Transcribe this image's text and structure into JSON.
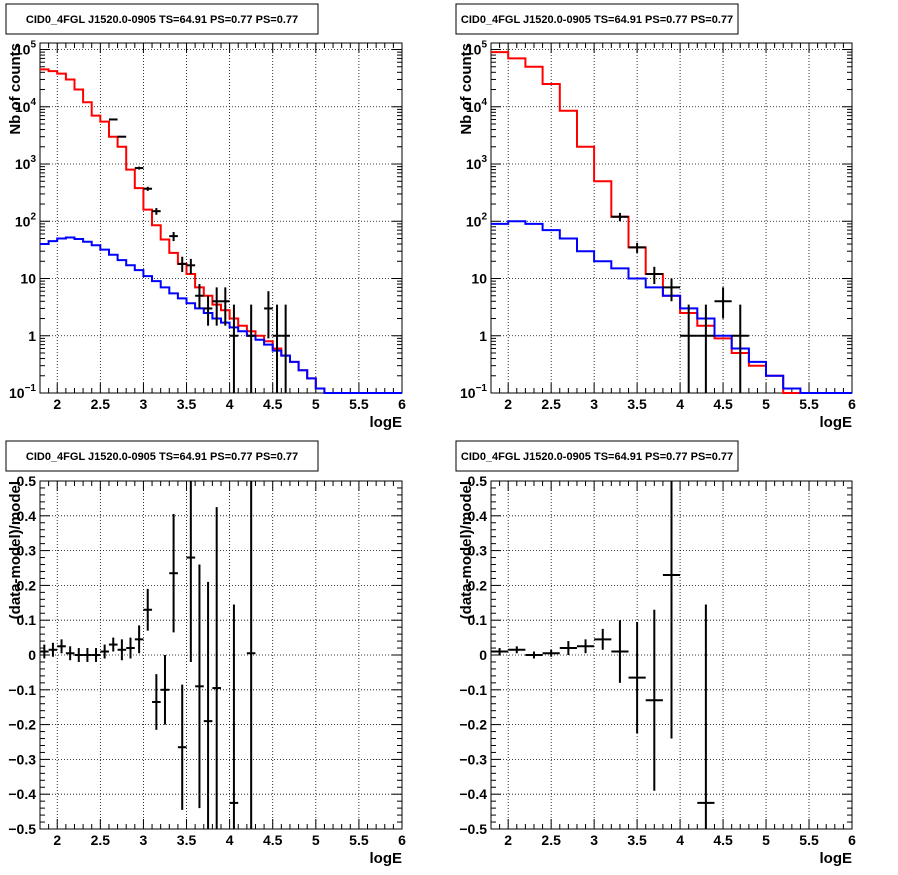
{
  "chart_data": [
    {
      "type": "line",
      "panel": "top-left",
      "title": "CID0_4FGL J1520.0-0905 TS=64.91 PS=0.77 PS=0.77",
      "xlabel": "logE",
      "ylabel": "Nb of counts",
      "xlim": [
        1.8,
        6.0
      ],
      "ylim": [
        0.1,
        130000
      ],
      "ylog": true,
      "grid": true,
      "x_ticks": [
        "2",
        "2.5",
        "3",
        "3.5",
        "4",
        "4.5",
        "5",
        "5.5",
        "6"
      ],
      "y_ticks": [
        {
          "value": 0.1,
          "base": "10",
          "exp": "−1"
        },
        {
          "value": 1,
          "base": "1",
          "exp": ""
        },
        {
          "value": 10,
          "base": "10",
          "exp": ""
        },
        {
          "value": 100,
          "base": "10",
          "exp": "2"
        },
        {
          "value": 1000,
          "base": "10",
          "exp": "3"
        },
        {
          "value": 10000,
          "base": "10",
          "exp": "4"
        },
        {
          "value": 100000,
          "base": "10",
          "exp": "5"
        }
      ],
      "series": [
        {
          "color": "#ff0000",
          "style": "step",
          "bin_width": 0.1,
          "x": [
            1.85,
            1.95,
            2.05,
            2.15,
            2.25,
            2.35,
            2.45,
            2.55,
            2.65,
            2.75,
            2.85,
            2.95,
            3.05,
            3.15,
            3.25,
            3.35,
            3.45,
            3.55,
            3.65,
            3.75,
            3.85,
            3.95,
            4.05,
            4.15,
            4.25,
            4.35,
            4.45,
            4.55,
            4.65,
            4.75,
            4.85,
            4.95,
            5.05,
            5.15,
            5.25,
            5.35,
            5.45,
            5.55,
            5.65,
            5.75,
            5.85,
            5.95
          ],
          "y": [
            45000,
            42000,
            38000,
            30000,
            20000,
            12000,
            7000,
            5500,
            3000,
            2000,
            800,
            380,
            160,
            85,
            48,
            28,
            18,
            12,
            7,
            5,
            3.5,
            2.8,
            2.0,
            1.5,
            1.2,
            1.0,
            0.8,
            0.6,
            0.45,
            0.35,
            0.25,
            0.18,
            0.12,
            0.1,
            0.1,
            0.1,
            0.1,
            0.1,
            0.1,
            0.1,
            0.1,
            0.1
          ]
        },
        {
          "color": "#0000ff",
          "style": "step",
          "bin_width": 0.1,
          "x": [
            1.85,
            1.95,
            2.05,
            2.15,
            2.25,
            2.35,
            2.45,
            2.55,
            2.65,
            2.75,
            2.85,
            2.95,
            3.05,
            3.15,
            3.25,
            3.35,
            3.45,
            3.55,
            3.65,
            3.75,
            3.85,
            3.95,
            4.05,
            4.15,
            4.25,
            4.35,
            4.45,
            4.55,
            4.65,
            4.75,
            4.85,
            4.95,
            5.05,
            5.15,
            5.25,
            5.35,
            5.45,
            5.55,
            5.65,
            5.75,
            5.85,
            5.95
          ],
          "y": [
            40,
            45,
            50,
            52,
            49,
            44,
            38,
            32,
            26,
            21,
            17,
            14,
            11,
            9,
            7,
            5.5,
            4.5,
            3.7,
            3.0,
            2.5,
            2.0,
            1.7,
            1.4,
            1.2,
            1.0,
            0.85,
            0.7,
            0.55,
            0.45,
            0.35,
            0.25,
            0.18,
            0.12,
            0.1,
            0.1,
            0.1,
            0.1,
            0.1,
            0.1,
            0.1,
            0.1,
            0.1
          ]
        },
        {
          "color": "#000000",
          "style": "errorbar",
          "x": [
            2.65,
            2.75,
            2.95,
            3.05,
            3.15,
            3.35,
            3.45,
            3.55,
            3.65,
            3.75,
            3.85,
            3.95,
            4.05,
            4.25,
            4.45,
            4.55,
            4.65
          ],
          "y": [
            6000,
            3000,
            850,
            370,
            150,
            55,
            18,
            17,
            5,
            3,
            4,
            4,
            1,
            1,
            3,
            1,
            1
          ],
          "ylow": [
            5900,
            2900,
            800,
            340,
            130,
            45,
            13,
            12,
            3,
            1.5,
            1.5,
            1.5,
            0.1,
            0.1,
            0.9,
            0.1,
            0.1
          ],
          "yhigh": [
            6100,
            3100,
            900,
            400,
            170,
            65,
            24,
            22,
            8,
            5,
            7,
            7,
            3.5,
            3.5,
            6,
            3.5,
            3.5
          ],
          "xerr": 0.05
        }
      ]
    },
    {
      "type": "line",
      "panel": "top-right",
      "title": "CID0_4FGL J1520.0-0905 TS=64.91 PS=0.77 PS=0.77",
      "xlabel": "logE",
      "ylabel": "Nb of counts",
      "xlim": [
        1.8,
        6.0
      ],
      "ylim": [
        0.1,
        130000
      ],
      "ylog": true,
      "grid": true,
      "x_ticks": [
        "2",
        "2.5",
        "3",
        "3.5",
        "4",
        "4.5",
        "5",
        "5.5",
        "6"
      ],
      "y_ticks": [
        {
          "value": 0.1,
          "base": "10",
          "exp": "−1"
        },
        {
          "value": 1,
          "base": "1",
          "exp": ""
        },
        {
          "value": 10,
          "base": "10",
          "exp": ""
        },
        {
          "value": 100,
          "base": "10",
          "exp": "2"
        },
        {
          "value": 1000,
          "base": "10",
          "exp": "3"
        },
        {
          "value": 10000,
          "base": "10",
          "exp": "4"
        },
        {
          "value": 100000,
          "base": "10",
          "exp": "5"
        }
      ],
      "series": [
        {
          "color": "#ff0000",
          "style": "step",
          "bin_width": 0.2,
          "x": [
            1.9,
            2.1,
            2.3,
            2.5,
            2.7,
            2.9,
            3.1,
            3.3,
            3.5,
            3.7,
            3.9,
            4.1,
            4.3,
            4.5,
            4.7,
            4.9,
            5.1,
            5.3,
            5.5,
            5.7,
            5.9
          ],
          "y": [
            90000,
            70000,
            50000,
            25000,
            8500,
            2000,
            500,
            120,
            35,
            12,
            5,
            2.5,
            1.5,
            0.9,
            0.5,
            0.3,
            0.2,
            0.1,
            0.1,
            0.1,
            0.1
          ]
        },
        {
          "color": "#0000ff",
          "style": "step",
          "bin_width": 0.2,
          "x": [
            1.9,
            2.1,
            2.3,
            2.5,
            2.7,
            2.9,
            3.1,
            3.3,
            3.5,
            3.7,
            3.9,
            4.1,
            4.3,
            4.5,
            4.7,
            4.9,
            5.1,
            5.3,
            5.5,
            5.7,
            5.9
          ],
          "y": [
            90,
            100,
            90,
            70,
            50,
            30,
            20,
            15,
            10,
            7,
            5,
            3,
            2,
            1,
            0.6,
            0.35,
            0.2,
            0.12,
            0.1,
            0.1,
            0.1
          ]
        },
        {
          "color": "#000000",
          "style": "errorbar",
          "x": [
            3.3,
            3.5,
            3.7,
            3.9,
            4.1,
            4.3,
            4.5,
            4.7
          ],
          "y": [
            120,
            35,
            12,
            7,
            1,
            1,
            4,
            1
          ],
          "ylow": [
            100,
            28,
            8,
            4,
            0.1,
            0.1,
            2,
            0.1
          ],
          "yhigh": [
            140,
            42,
            16,
            10,
            3.5,
            3.5,
            7,
            3.5
          ],
          "xerr": 0.1
        }
      ]
    },
    {
      "type": "scatter",
      "panel": "bottom-left",
      "title": "CID0_4FGL J1520.0-0905 TS=64.91 PS=0.77 PS=0.77",
      "xlabel": "logE",
      "ylabel": "(data-model)/model",
      "xlim": [
        1.8,
        6.0
      ],
      "ylim": [
        -0.5,
        0.5
      ],
      "ylog": false,
      "grid": true,
      "x_ticks": [
        "2",
        "2.5",
        "3",
        "3.5",
        "4",
        "4.5",
        "5",
        "5.5",
        "6"
      ],
      "y_ticks": [
        "−0.5",
        "−0.4",
        "−0.3",
        "−0.2",
        "−0.1",
        "0",
        "0.1",
        "0.2",
        "0.3",
        "0.4",
        "0.5"
      ],
      "series": [
        {
          "color": "#000000",
          "style": "errorbar",
          "xerr": 0.05,
          "x": [
            1.85,
            1.95,
            2.05,
            2.15,
            2.25,
            2.35,
            2.45,
            2.55,
            2.65,
            2.75,
            2.85,
            2.95,
            3.05,
            3.15,
            3.25,
            3.35,
            3.45,
            3.55,
            3.65,
            3.75,
            3.85,
            4.05,
            4.25
          ],
          "y": [
            0.01,
            0.015,
            0.025,
            0.005,
            0.0,
            0.0,
            0.0,
            0.01,
            0.03,
            0.015,
            0.02,
            0.045,
            0.13,
            -0.135,
            -0.1,
            0.235,
            -0.265,
            0.28,
            -0.09,
            -0.19,
            -0.095,
            -0.425,
            0.005
          ],
          "yerr": [
            0.02,
            0.02,
            0.02,
            0.02,
            0.02,
            0.02,
            0.02,
            0.02,
            0.02,
            0.03,
            0.03,
            0.04,
            0.06,
            0.08,
            0.1,
            0.17,
            0.18,
            0.3,
            0.35,
            0.4,
            0.52,
            0.57,
            0.9
          ]
        }
      ]
    },
    {
      "type": "scatter",
      "panel": "bottom-right",
      "title": "CID0_4FGL J1520.0-0905 TS=64.91 PS=0.77 PS=0.77",
      "xlabel": "logE",
      "ylabel": "(data-model)/model",
      "xlim": [
        1.8,
        6.0
      ],
      "ylim": [
        -0.5,
        0.5
      ],
      "ylog": false,
      "grid": true,
      "x_ticks": [
        "2",
        "2.5",
        "3",
        "3.5",
        "4",
        "4.5",
        "5",
        "5.5",
        "6"
      ],
      "y_ticks": [
        "−0.5",
        "−0.4",
        "−0.3",
        "−0.2",
        "−0.1",
        "0",
        "0.1",
        "0.2",
        "0.3",
        "0.4",
        "0.5"
      ],
      "series": [
        {
          "color": "#000000",
          "style": "errorbar",
          "xerr": 0.1,
          "x": [
            1.9,
            2.1,
            2.3,
            2.5,
            2.7,
            2.9,
            3.1,
            3.3,
            3.5,
            3.7,
            3.9,
            4.3
          ],
          "y": [
            0.01,
            0.015,
            0.0,
            0.005,
            0.02,
            0.025,
            0.045,
            0.01,
            -0.065,
            -0.13,
            0.23,
            -0.425
          ],
          "yerr": [
            0.01,
            0.01,
            0.01,
            0.01,
            0.02,
            0.02,
            0.03,
            0.09,
            0.16,
            0.26,
            0.47,
            0.57
          ]
        }
      ]
    }
  ]
}
